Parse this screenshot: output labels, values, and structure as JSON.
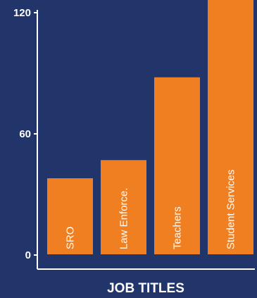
{
  "chart_data": {
    "type": "bar",
    "title": "",
    "xlabel": "JOB TITLES",
    "ylabel": "",
    "categories": [
      "SRO",
      "Law Enforce.",
      "Teachers",
      "Student Services"
    ],
    "values": [
      38,
      47,
      88,
      128
    ],
    "ylim": [
      0,
      130
    ],
    "yticks": [
      0,
      60,
      120
    ],
    "grid": false,
    "legend": "none",
    "colors": {
      "background": "#22356a",
      "bar": "#f07f22",
      "axis": "#ffffff",
      "text": "#ffffff"
    }
  }
}
